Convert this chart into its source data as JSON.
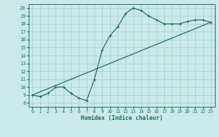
{
  "title": "",
  "xlabel": "Humidex (Indice chaleur)",
  "bg_color": "#cce9e9",
  "grid_color": "#aad4d4",
  "line_color": "#1a6b6b",
  "xlim": [
    -0.5,
    23.5
  ],
  "ylim": [
    7.5,
    20.5
  ],
  "xticks": [
    0,
    1,
    2,
    3,
    4,
    5,
    6,
    7,
    8,
    9,
    10,
    11,
    12,
    13,
    14,
    15,
    16,
    17,
    18,
    19,
    20,
    21,
    22,
    23
  ],
  "yticks": [
    8,
    9,
    10,
    11,
    12,
    13,
    14,
    15,
    16,
    17,
    18,
    19,
    20
  ],
  "line1_x": [
    0,
    1,
    2,
    3,
    4,
    5,
    6,
    7,
    8,
    9,
    10,
    11,
    12,
    13,
    14,
    15,
    16,
    17,
    18,
    19,
    20,
    21,
    22,
    23
  ],
  "line1_y": [
    9.0,
    8.8,
    9.2,
    10.0,
    10.0,
    9.2,
    8.6,
    8.3,
    11.0,
    14.7,
    16.5,
    17.6,
    19.3,
    20.0,
    19.7,
    19.0,
    18.5,
    18.0,
    18.0,
    18.0,
    18.3,
    18.5,
    18.5,
    18.2
  ],
  "line2_x": [
    0,
    23
  ],
  "line2_y": [
    9.0,
    18.2
  ]
}
